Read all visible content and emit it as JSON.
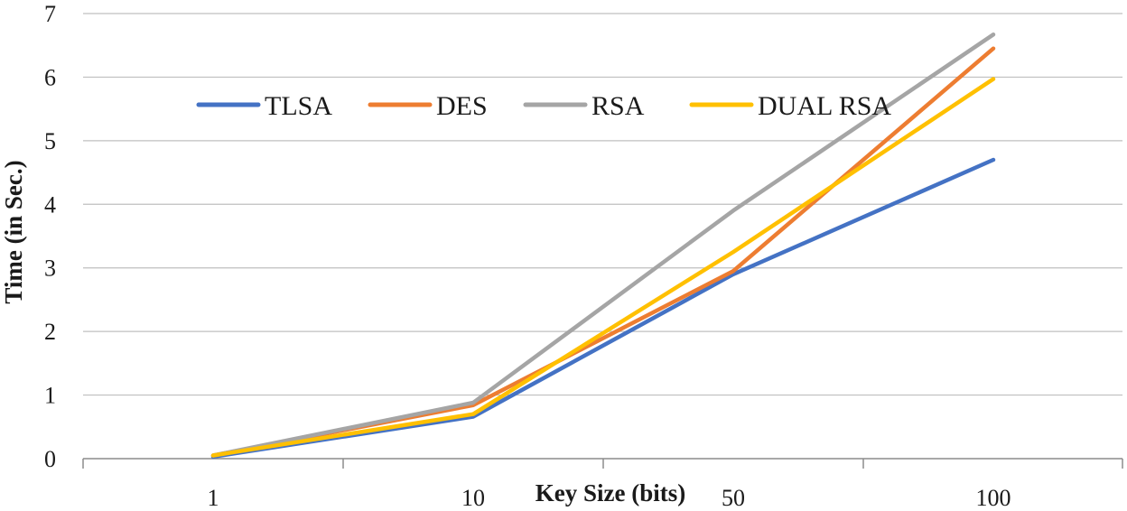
{
  "chart_data": {
    "type": "line",
    "title": "",
    "xlabel": "Key Size (bits)",
    "ylabel": "Time (in Sec.)",
    "categories": [
      "1",
      "10",
      "50",
      "100"
    ],
    "ylim": [
      0,
      7
    ],
    "yticks": [
      "0",
      "1",
      "2",
      "3",
      "4",
      "5",
      "6",
      "7"
    ],
    "grid": true,
    "legend_position": "top",
    "series": [
      {
        "name": "TLSA",
        "color": "#4472C4",
        "values": [
          0.03,
          0.66,
          2.9,
          4.7
        ]
      },
      {
        "name": "DES",
        "color": "#ED7D31",
        "values": [
          0.05,
          0.84,
          2.95,
          6.45
        ]
      },
      {
        "name": "RSA",
        "color": "#A5A5A5",
        "values": [
          0.05,
          0.88,
          3.9,
          6.67
        ]
      },
      {
        "name": "DUAL RSA",
        "color": "#FFC000",
        "values": [
          0.05,
          0.7,
          3.25,
          5.97
        ]
      }
    ]
  }
}
